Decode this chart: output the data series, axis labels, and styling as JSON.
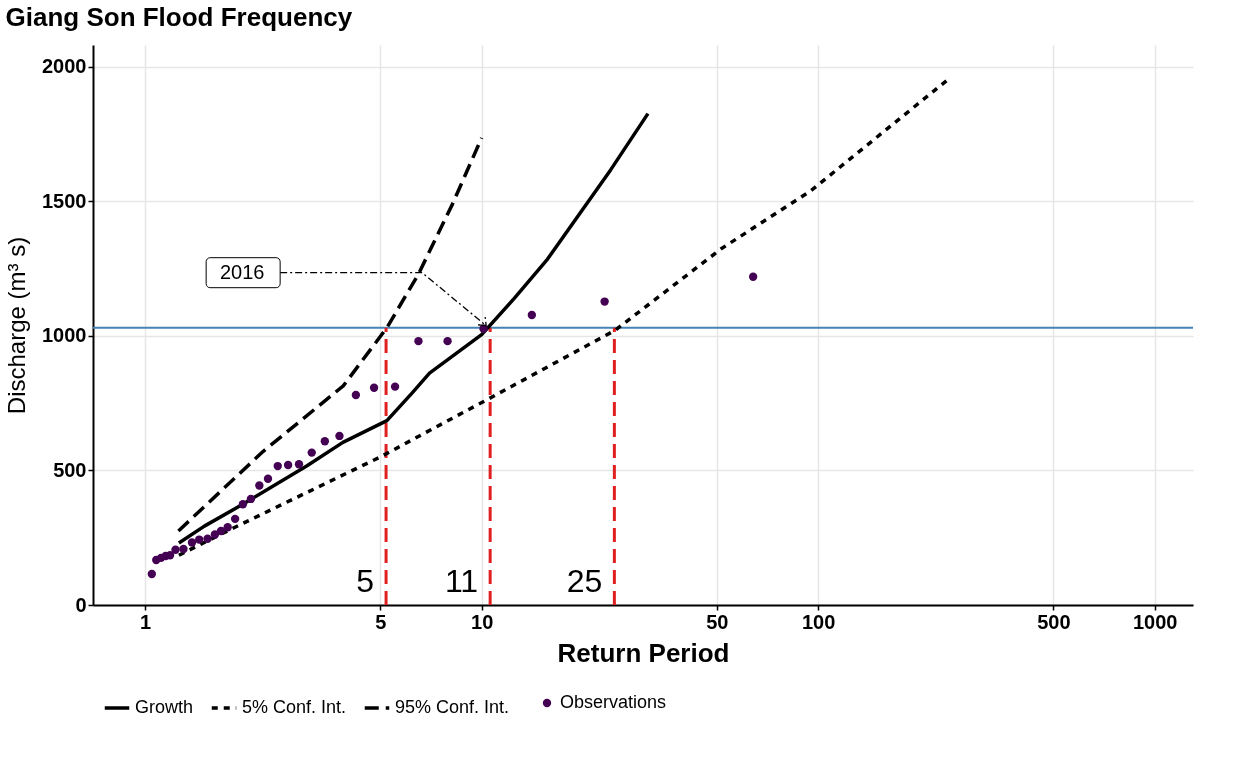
{
  "chart_data": {
    "type": "line",
    "title": "Giang Son Flood Frequency",
    "xlabel": "Return Period",
    "ylabel": "Discharge (m³ s)",
    "log": "x",
    "xlim": [
      0.7,
      1300
    ],
    "xticks": [
      1,
      5,
      10,
      50,
      100,
      500,
      {
        "value": 1000,
        "label": "1000"
      }
    ],
    "ylim": [
      0,
      2080
    ],
    "yticks": [
      0,
      500,
      {
        "value": 1000,
        "label": "1000"
      },
      {
        "value": 1500,
        "label": "1500"
      },
      {
        "value": 2000,
        "label": "2000"
      }
    ],
    "grid": true,
    "legend": "bottom",
    "series": [
      {
        "name": "Observations",
        "type": "scatter",
        "marker": "circle",
        "color": "#440154",
        "x": [
          1.047,
          1.079,
          1.115,
          1.151,
          1.186,
          1.231,
          1.3,
          1.378,
          1.448,
          1.533,
          1.612,
          1.681,
          1.759,
          1.851,
          1.952,
          2.062,
          2.185,
          2.318,
          2.478,
          2.66,
          2.866,
          3.127,
          3.42,
          3.78,
          4.23,
          4.79,
          5.53,
          6.49,
          7.92,
          10.13,
          14.1,
          23.2,
          64.1
        ],
        "values": [
          115,
          167,
          175,
          182,
          185,
          205,
          208,
          232,
          243,
          246,
          262,
          275,
          289,
          320,
          374,
          394,
          444,
          469,
          516,
          520,
          523,
          566,
          608,
          628,
          780,
          807,
          811,
          980,
          980,
          1026,
          1077,
          1127,
          1219
        ]
      },
      {
        "name": "Growth",
        "line_style": "solid",
        "color": "#000000",
        "x": [
          1.26,
          1.5,
          1.95,
          3.02,
          3.87,
          5.23,
          6.2,
          7,
          10,
          12.5,
          15.7,
          24.2,
          31.2
        ],
        "values": [
          230,
          293,
          374,
          516,
          604,
          685,
          786,
          861,
          1004,
          1139,
          1285,
          1617,
          1825
        ]
      },
      {
        "name": "5% Conf. Int.",
        "line_style": "dotted",
        "color": "#000000",
        "x": [
          1.26,
          1.83,
          5.0,
          10.5,
          24.9,
          51.5,
          95,
          246
        ],
        "values": [
          185,
          286,
          550,
          766,
          1020,
          1323,
          1538,
          1957
        ]
      },
      {
        "name": "95% Conf. Int.",
        "line_style": "dashed",
        "color": "#000000",
        "x": [
          1.256,
          2.24,
          3.88,
          5.23,
          6.49,
          8.19,
          10.0
        ],
        "values": [
          275,
          570,
          814,
          1030,
          1229,
          1489,
          1735
        ]
      }
    ],
    "ref_lines": [
      {
        "axis": "y",
        "value": 1030,
        "color": "#4682b4",
        "line_style": "solid"
      },
      {
        "axis": "x",
        "value": 5.2,
        "label": "5",
        "color": "#e02020",
        "line_style": "dashed"
      },
      {
        "axis": "x",
        "value": 10.6,
        "label": "11",
        "color": "#e02020",
        "line_style": "dashed"
      },
      {
        "axis": "x",
        "value": 24.8,
        "label": "25",
        "color": "#e02020",
        "line_style": "dashed"
      }
    ],
    "annotations": [
      "2016"
    ]
  }
}
